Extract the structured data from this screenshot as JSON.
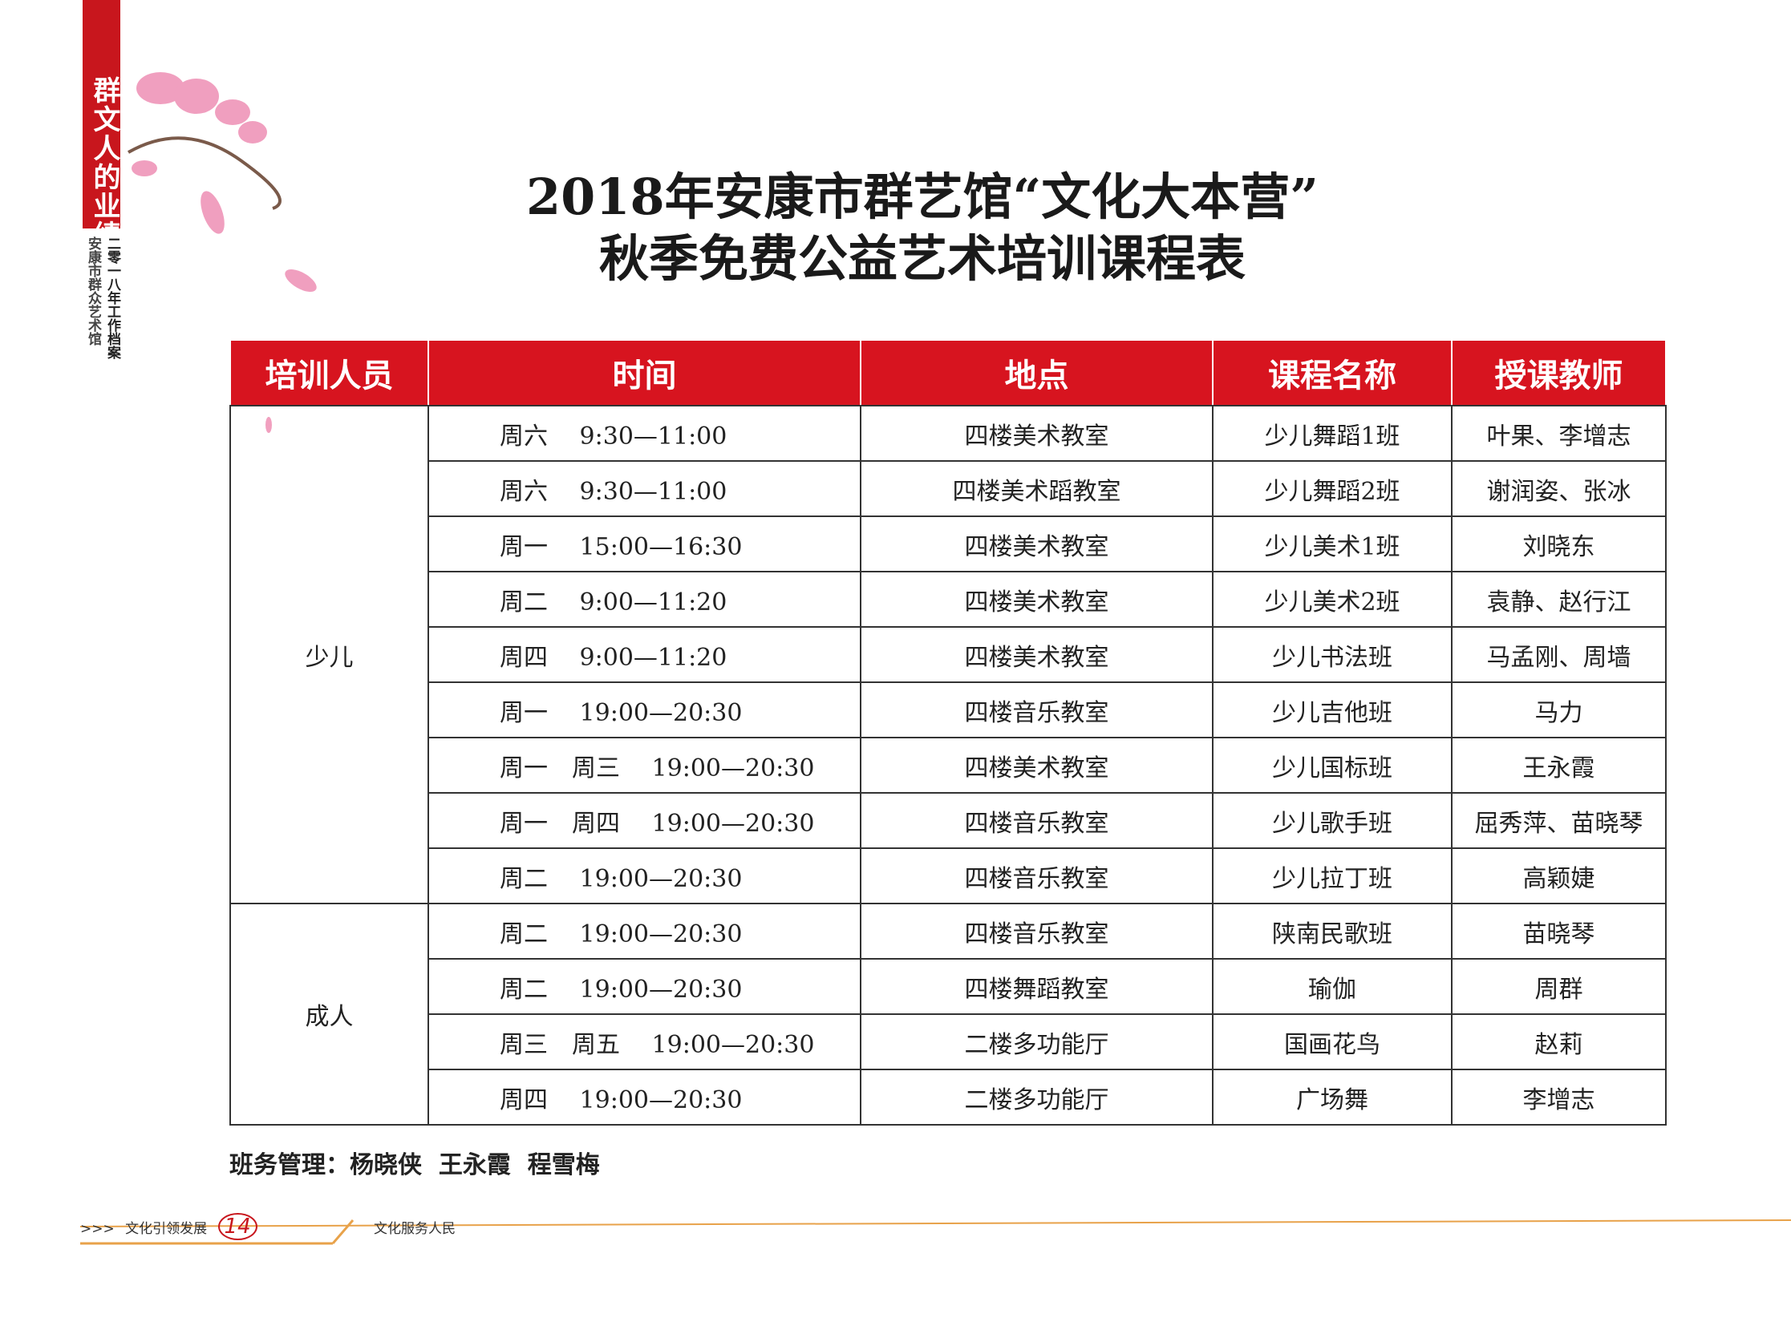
{
  "sidebar": {
    "title": "群文人的业绩",
    "subtitle": "二零一八年工作档案",
    "org": "安康市群众艺术馆"
  },
  "header": {
    "title": [
      "2018年安康市群艺馆“文化大本营”",
      "秋季免费公益艺术培训课程表"
    ]
  },
  "table": {
    "headers": [
      "培训人员",
      "时间",
      "地点",
      "课程名称",
      "授课教师"
    ],
    "groups": [
      {
        "label": "少儿",
        "rows": [
          [
            "周六　 9:30—11:00",
            "四楼美术教室",
            "少儿舞蹈1班",
            "叶果、李增志"
          ],
          [
            "周六　 9:30—11:00",
            "四楼美术蹈教室",
            "少儿舞蹈2班",
            "谢润姿、张冰"
          ],
          [
            "周一　 15:00—16:30",
            "四楼美术教室",
            "少儿美术1班",
            "刘晓东"
          ],
          [
            "周二　 9:00—11:20",
            "四楼美术教室",
            "少儿美术2班",
            "袁静、赵行江"
          ],
          [
            "周四　 9:00—11:20",
            "四楼美术教室",
            "少儿书法班",
            "马孟刚、周墙"
          ],
          [
            "周一　 19:00—20:30",
            "四楼音乐教室",
            "少儿吉他班",
            "马力"
          ],
          [
            "周一　周三　 19:00—20:30",
            "四楼美术教室",
            "少儿国标班",
            "王永霞"
          ],
          [
            "周一　周四　 19:00—20:30",
            "四楼音乐教室",
            "少儿歌手班",
            "屈秀萍、苗晓琴"
          ],
          [
            "周二　 19:00—20:30",
            "四楼音乐教室",
            "少儿拉丁班",
            "高颖婕"
          ]
        ]
      },
      {
        "label": "成人",
        "rows": [
          [
            "周二　 19:00—20:30",
            "四楼音乐教室",
            "陕南民歌班",
            "苗晓琴"
          ],
          [
            "周二　 19:00—20:30",
            "四楼舞蹈教室",
            "瑜伽",
            "周群"
          ],
          [
            "周三　周五　 19:00—20:30",
            "二楼多功能厅",
            "国画花鸟",
            "赵莉"
          ],
          [
            "周四　 19:00—20:30",
            "二楼多功能厅",
            "广场舞",
            "李增志"
          ]
        ]
      }
    ]
  },
  "footer": {
    "manager": "班务管理：杨晓侠  王永霞  程雪梅"
  },
  "bottom": {
    "arrows": ">>>",
    "left": "文化引领发展",
    "page": "14",
    "right": "文化服务人民"
  }
}
